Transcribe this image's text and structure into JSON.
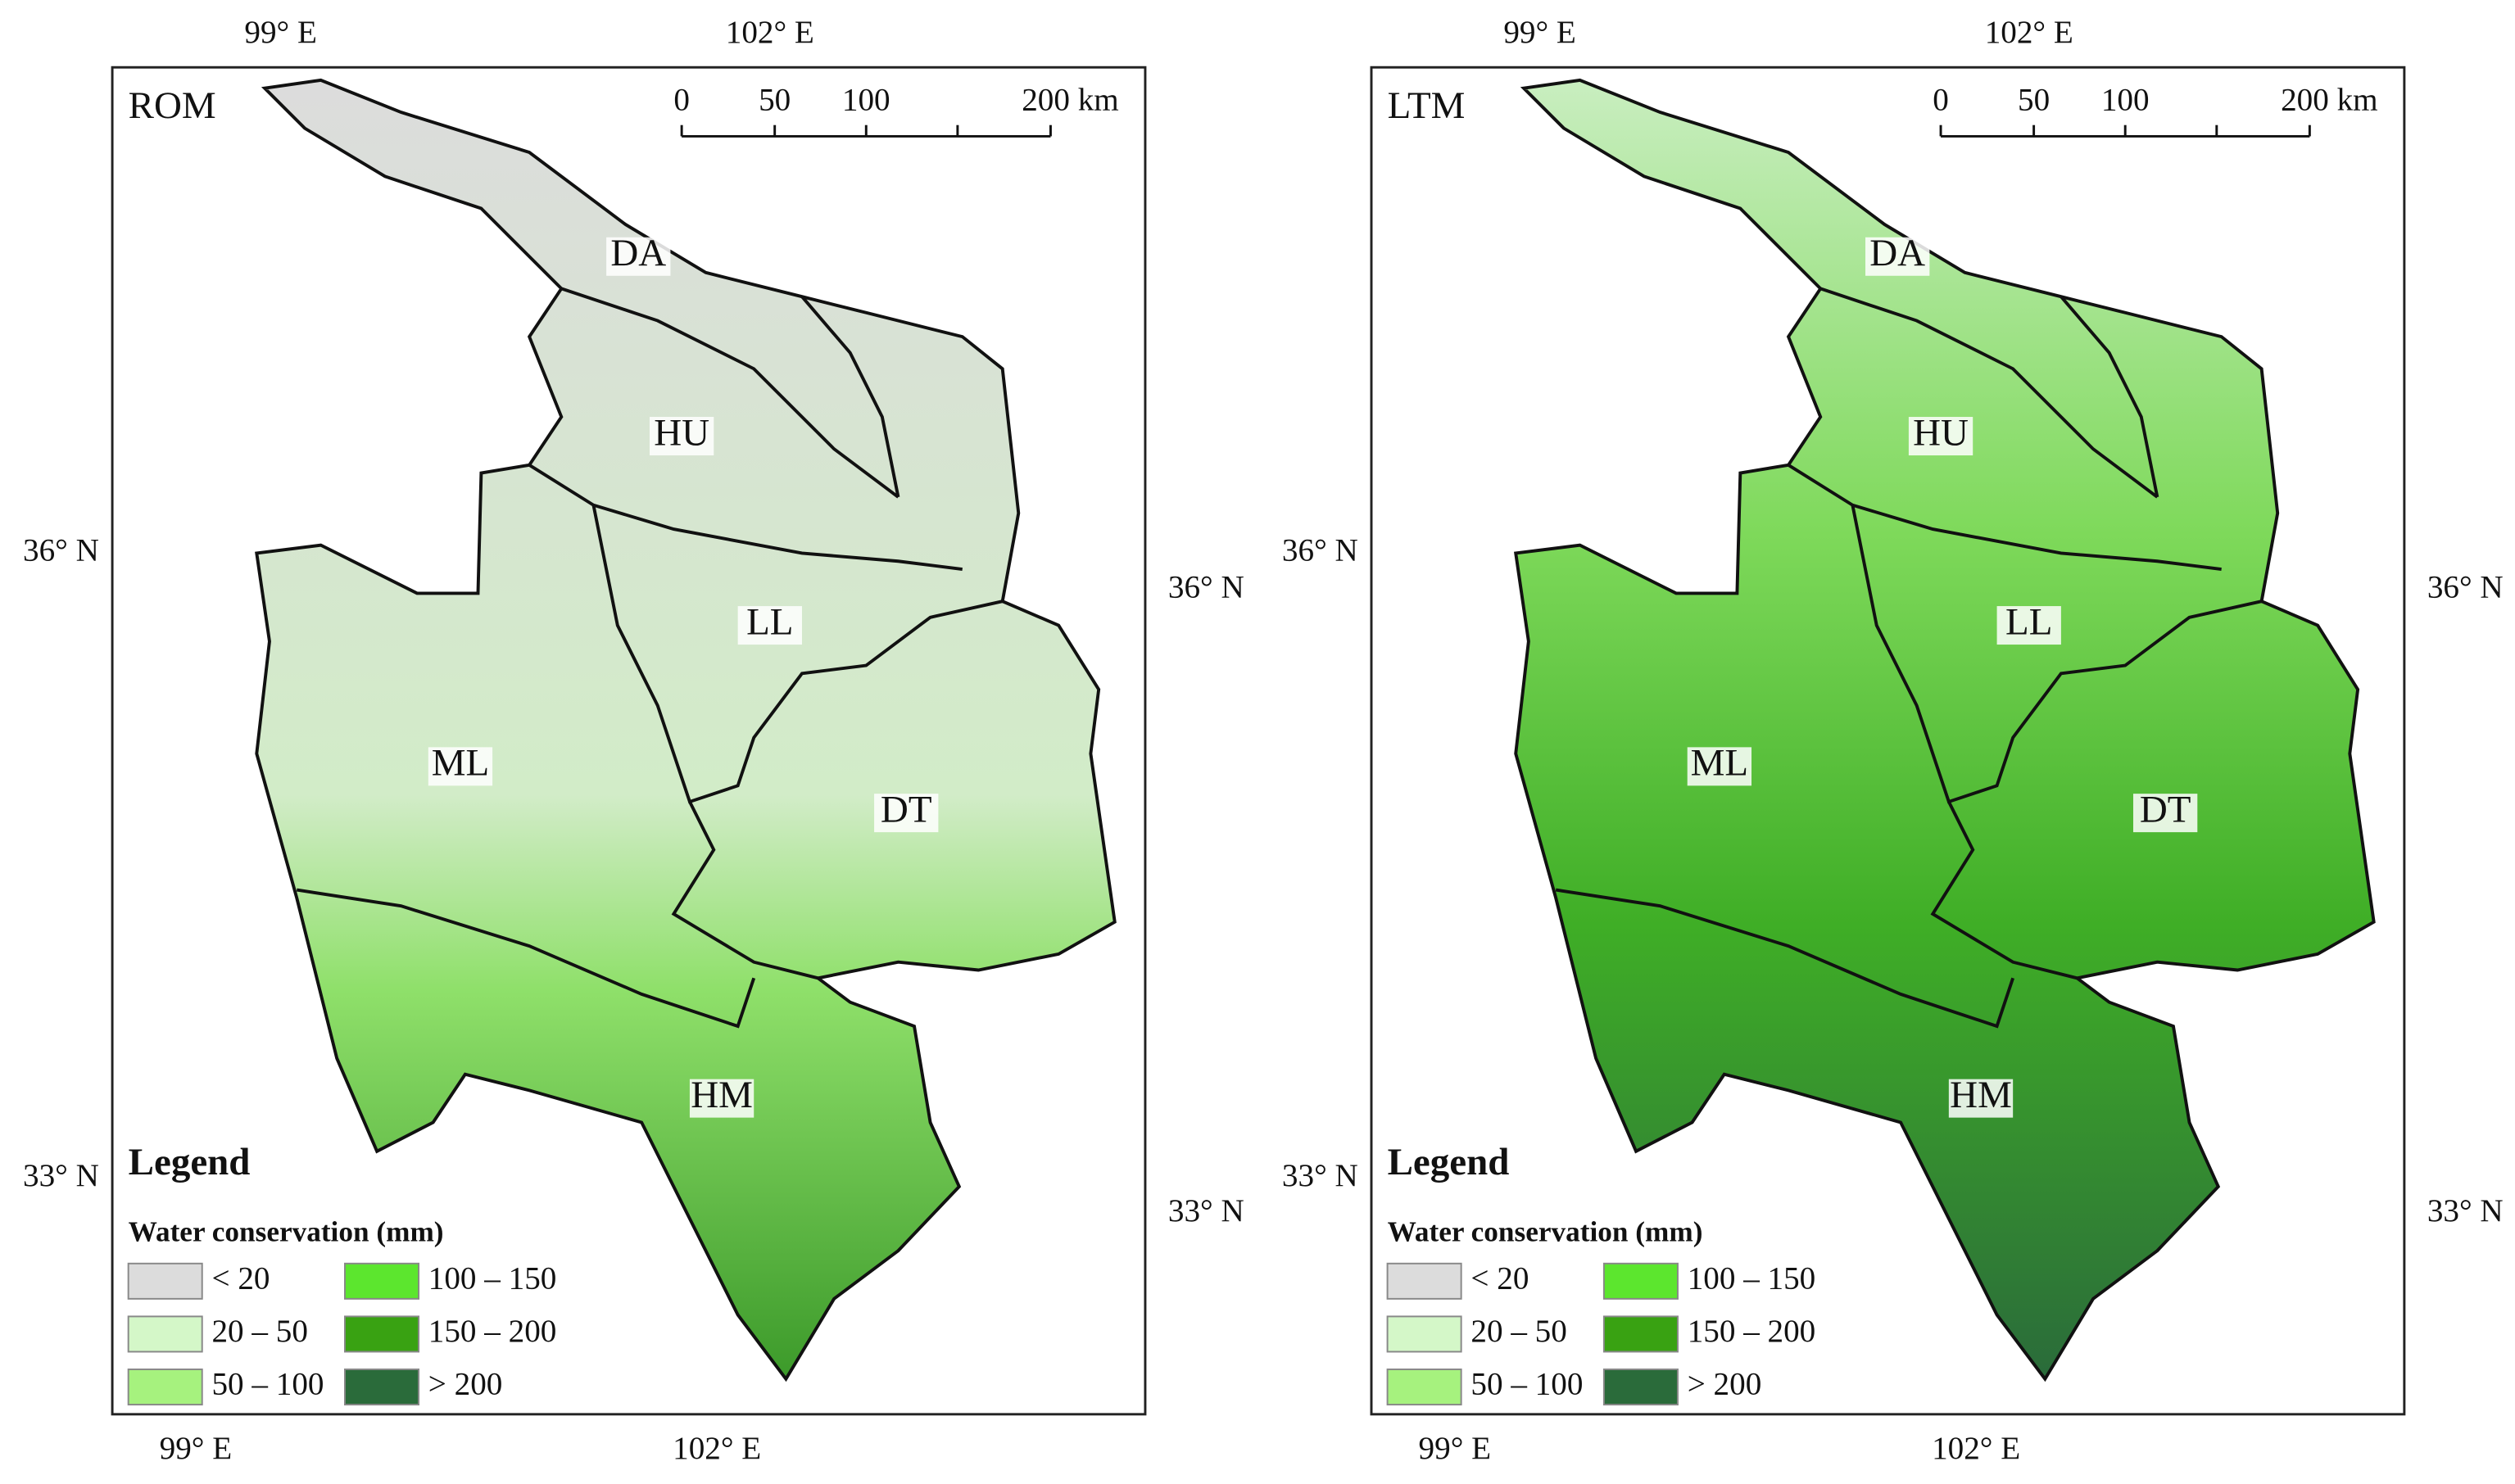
{
  "panels": [
    {
      "label": "ROM"
    },
    {
      "label": "LTM"
    }
  ],
  "regions": [
    "DA",
    "HU",
    "LL",
    "ML",
    "DT",
    "HM"
  ],
  "axes": {
    "top": [
      "99° E",
      "102° E"
    ],
    "bottom": [
      "99° E",
      "102° E"
    ],
    "left": [
      "36° N",
      "33° N"
    ],
    "right": [
      "36° N",
      "33° N"
    ]
  },
  "scale_bar": [
    "0",
    "50",
    "100",
    "200 km"
  ],
  "legend": {
    "title": "Legend",
    "subtitle": "Water conservation (mm)",
    "items": [
      {
        "label": "< 20",
        "color": "#dcdcdc"
      },
      {
        "label": "20 – 50",
        "color": "#d4f7c8"
      },
      {
        "label": "50 – 100",
        "color": "#a6f27e"
      },
      {
        "label": "100 – 150",
        "color": "#5ce62e"
      },
      {
        "label": "150 – 200",
        "color": "#39a212"
      },
      {
        "label": "> 200",
        "color": "#2a6b3a"
      }
    ]
  }
}
